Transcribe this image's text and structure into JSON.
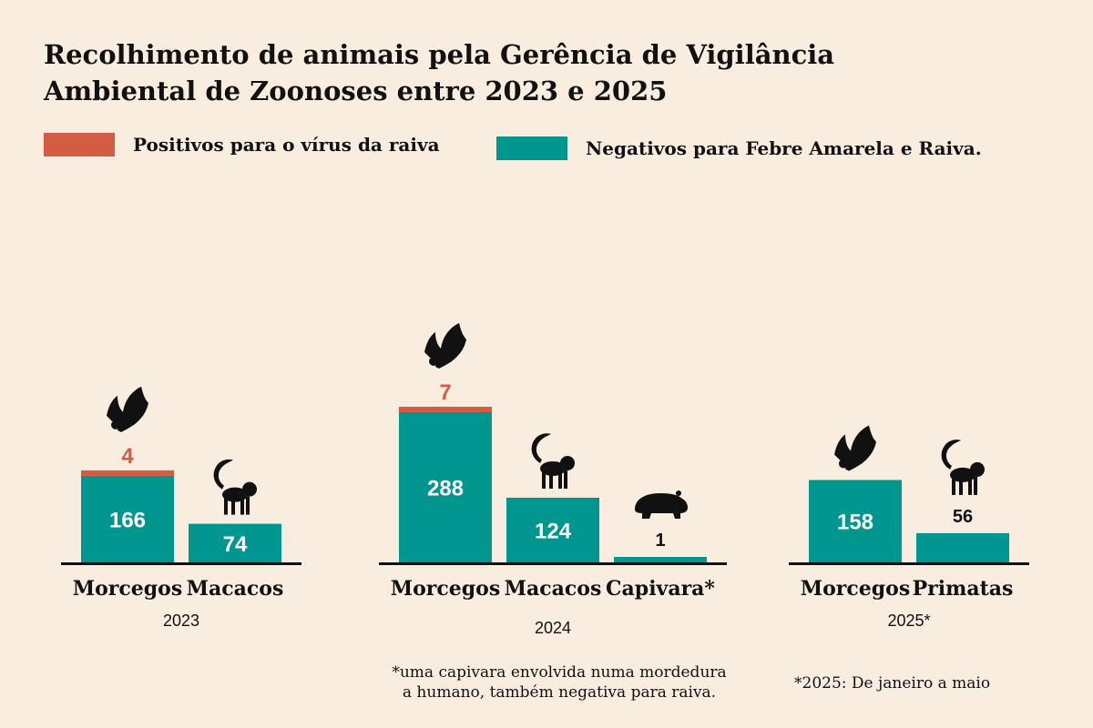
{
  "title_line1": "Recolhimento de animais pela Gerência de Vigilância",
  "title_line2": "Ambiental de Zoonoses entre 2023 e 2025",
  "legend": {
    "positive": {
      "label": "Positivos para o vírus da raiva",
      "color": "#d45c45"
    },
    "negative": {
      "label": "Negativos para Febre Amarela e Raiva.",
      "color": "#009690"
    }
  },
  "notes": {
    "capybara_line1": "*uma capivara envolvida numa mordedura",
    "capybara_line2": "a humano, também negativa para raiva.",
    "year_2025": "*2025: De janeiro a maio"
  },
  "chart_data": {
    "type": "bar",
    "stacked": true,
    "groups": [
      {
        "year": "2023",
        "bars": [
          {
            "category": "Morcegos",
            "negative": 166,
            "positive": 4,
            "icon": "bat-icon"
          },
          {
            "category": "Macacos",
            "negative": 74,
            "positive": 0,
            "icon": "monkey-icon"
          }
        ]
      },
      {
        "year": "2024",
        "bars": [
          {
            "category": "Morcegos",
            "negative": 288,
            "positive": 7,
            "icon": "bat-icon"
          },
          {
            "category": "Macacos",
            "negative": 124,
            "positive": 0,
            "icon": "monkey-icon"
          },
          {
            "category": "Capivara*",
            "negative": 1,
            "positive": 0,
            "icon": "capybara-icon"
          }
        ]
      },
      {
        "year": "2025*",
        "bars": [
          {
            "category": "Morcegos",
            "negative": 158,
            "positive": 0,
            "icon": "bat-icon"
          },
          {
            "category": "Primatas",
            "negative": 56,
            "positive": 0,
            "icon": "monkey-icon"
          }
        ]
      }
    ]
  }
}
